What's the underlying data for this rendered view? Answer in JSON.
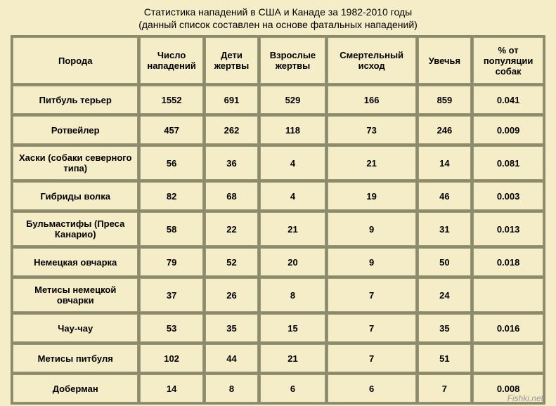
{
  "title_line1": "Статистика нападений в США и Канаде за 1982-2010 годы",
  "title_line2": "(данный список составлен на основе фатальных нападений)",
  "headers": {
    "breed": "Порода",
    "attacks": "Число нападений",
    "children": "Дети жертвы",
    "adults": "Взрослые жертвы",
    "fatal": "Смертельный исход",
    "injury": "Увечья",
    "pct": "% от популяции собак"
  },
  "rows": [
    {
      "breed": "Питбуль терьер",
      "attacks": "1552",
      "children": "691",
      "adults": "529",
      "fatal": "166",
      "injury": "859",
      "pct": "0.041",
      "tall": false
    },
    {
      "breed": "Ротвейлер",
      "attacks": "457",
      "children": "262",
      "adults": "118",
      "fatal": "73",
      "injury": "246",
      "pct": "0.009",
      "tall": false
    },
    {
      "breed": "Хаски (собаки северного типа)",
      "attacks": "56",
      "children": "36",
      "adults": "4",
      "fatal": "21",
      "injury": "14",
      "pct": "0.081",
      "tall": true
    },
    {
      "breed": "Гибриды волка",
      "attacks": "82",
      "children": "68",
      "adults": "4",
      "fatal": "19",
      "injury": "46",
      "pct": "0.003",
      "tall": false
    },
    {
      "breed": "Бульмастифы (Преса Канарио)",
      "attacks": "58",
      "children": "22",
      "adults": "21",
      "fatal": "9",
      "injury": "31",
      "pct": "0.013",
      "tall": true
    },
    {
      "breed": "Немецкая овчарка",
      "attacks": "79",
      "children": "52",
      "adults": "20",
      "fatal": "9",
      "injury": "50",
      "pct": "0.018",
      "tall": false
    },
    {
      "breed": "Метисы немецкой овчарки",
      "attacks": "37",
      "children": "26",
      "adults": "8",
      "fatal": "7",
      "injury": "24",
      "pct": "",
      "tall": true
    },
    {
      "breed": "Чау-чау",
      "attacks": "53",
      "children": "35",
      "adults": "15",
      "fatal": "7",
      "injury": "35",
      "pct": "0.016",
      "tall": false
    },
    {
      "breed": "Метисы питбуля",
      "attacks": "102",
      "children": "44",
      "adults": "21",
      "fatal": "7",
      "injury": "51",
      "pct": "",
      "tall": false
    },
    {
      "breed": "Доберман",
      "attacks": "14",
      "children": "8",
      "adults": "6",
      "fatal": "6",
      "injury": "7",
      "pct": "0.008",
      "tall": false
    }
  ],
  "watermark": "Fishki.net",
  "styling": {
    "background_color": "#f5ecc8",
    "border_color": "#999977",
    "table_gap_color": "#8b8b6b",
    "text_color": "#000000",
    "watermark_color": "#999999",
    "font_family": "Arial",
    "title_fontsize": 14,
    "cell_fontsize": 13,
    "column_widths": {
      "breed": 170,
      "attacks": 85,
      "children": 72,
      "adults": 88,
      "fatal": 120,
      "injury": 72,
      "pct": 95
    }
  }
}
